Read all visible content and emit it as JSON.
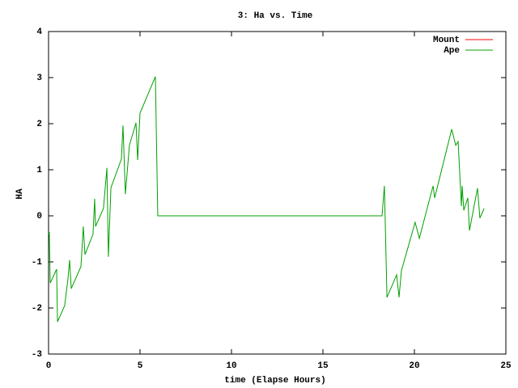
{
  "chart_data": {
    "type": "line",
    "title": "3: Ha vs. Time",
    "xlabel": "time (Elapse Hours)",
    "ylabel": "HA",
    "xlim": [
      0,
      25
    ],
    "xticks": [
      0,
      5,
      10,
      15,
      20,
      25
    ],
    "ylim": [
      -3,
      4
    ],
    "yticks": [
      -3,
      -2,
      -1,
      0,
      1,
      2,
      3,
      4
    ],
    "legend": "top-right",
    "series": [
      {
        "name": "Mount",
        "color": "#ff0000",
        "x": [],
        "values": []
      },
      {
        "name": "Ape",
        "color": "#00a000",
        "x": [
          0,
          0.04,
          0.09,
          0.44,
          0.49,
          0.88,
          1.06,
          1.15,
          1.24,
          1.77,
          1.9,
          1.99,
          2.43,
          2.52,
          2.57,
          3.0,
          3.19,
          3.27,
          3.41,
          3.98,
          4.07,
          4.2,
          4.42,
          4.78,
          4.87,
          5.0,
          5.84,
          5.97,
          18.23,
          18.36,
          18.5,
          19.03,
          19.16,
          19.29,
          20.04,
          20.27,
          21.02,
          21.11,
          22.04,
          22.26,
          22.39,
          22.57,
          22.61,
          22.7,
          22.92,
          23.01,
          23.45,
          23.58,
          23.81
        ],
        "values": [
          -0.4,
          -0.35,
          -1.46,
          -1.16,
          -2.3,
          -1.95,
          -1.37,
          -0.96,
          -1.58,
          -1.1,
          -0.23,
          -0.84,
          -0.4,
          0.37,
          -0.23,
          0.16,
          1.04,
          -0.89,
          0.61,
          1.23,
          1.96,
          0.47,
          1.53,
          2.02,
          1.21,
          2.23,
          3.02,
          0,
          0,
          0.65,
          -1.77,
          -1.28,
          -1.77,
          -1.19,
          -0.14,
          -0.49,
          0.65,
          0.39,
          1.88,
          1.53,
          1.61,
          0.21,
          0.65,
          0.12,
          0.39,
          -0.32,
          0.6,
          -0.05,
          0.16
        ]
      }
    ]
  }
}
